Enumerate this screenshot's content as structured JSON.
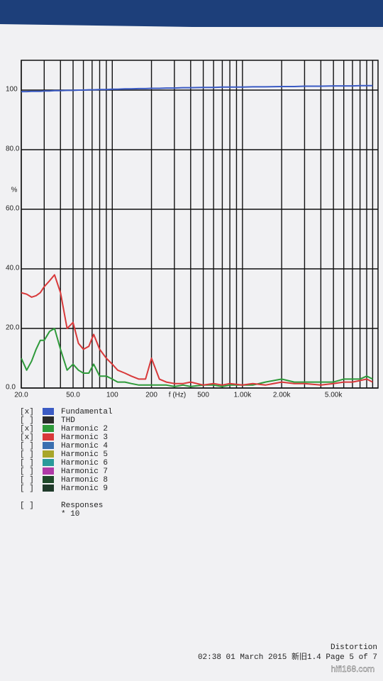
{
  "chart_data": {
    "type": "line",
    "y_label": "%",
    "x_label": "f (Hz)",
    "log_x": true,
    "grid": true,
    "x": [
      20,
      22,
      24,
      26,
      28,
      30,
      33,
      36,
      40,
      45,
      50,
      55,
      60,
      66,
      72,
      80,
      90,
      100,
      110,
      125,
      140,
      160,
      180,
      200,
      230,
      260,
      300,
      350,
      400,
      500,
      600,
      700,
      800,
      1000,
      1200,
      1500,
      2000,
      2500,
      3000,
      4000,
      5000,
      6000,
      7000,
      8000,
      9000,
      10000
    ],
    "series": [
      {
        "name": "Fundamental",
        "mark": "[x]",
        "color": "#3b5bc4",
        "values": [
          99.5,
          99.5,
          99.6,
          99.6,
          99.6,
          99.7,
          99.7,
          99.8,
          99.8,
          99.9,
          99.9,
          100,
          100,
          100.1,
          100.1,
          100.2,
          100.2,
          100.3,
          100.3,
          100.4,
          100.4,
          100.5,
          100.5,
          100.6,
          100.6,
          100.7,
          100.7,
          100.8,
          100.8,
          100.9,
          100.9,
          101,
          101,
          101,
          101.1,
          101.1,
          101.2,
          101.2,
          101.3,
          101.3,
          101.4,
          101.4,
          101.4,
          101.5,
          101.5,
          101.5
        ]
      },
      {
        "name": "THD",
        "mark": "[ ]",
        "color": "#2a2a2a"
      },
      {
        "name": "Harmonic 2",
        "mark": "[x]",
        "color": "#2e9a3a",
        "values": [
          10,
          6,
          9,
          13,
          16,
          16,
          19,
          20,
          13,
          6,
          8,
          6,
          5,
          5,
          8,
          4,
          4,
          3,
          2,
          2,
          1.5,
          1,
          1,
          1,
          1,
          1,
          0.5,
          1,
          0.5,
          1,
          1,
          0.5,
          1,
          1,
          1,
          2,
          3,
          2,
          2,
          2,
          2,
          3,
          3,
          3,
          4,
          3
        ]
      },
      {
        "name": "Harmonic 3",
        "mark": "[x]",
        "color": "#d8393a",
        "values": [
          32,
          31.5,
          30.5,
          31,
          32,
          34,
          36,
          38,
          32,
          20,
          22,
          15,
          13,
          14,
          18,
          13,
          10,
          8,
          6,
          5,
          4,
          3,
          3,
          10,
          3,
          2,
          1.5,
          1.5,
          2,
          1,
          1.5,
          1,
          1.5,
          1,
          1.5,
          1,
          2,
          1.5,
          1.5,
          1,
          1.5,
          2,
          2,
          2.5,
          3,
          2
        ]
      },
      {
        "name": "Harmonic 4",
        "mark": "[ ]",
        "color": "#3a6fb0"
      },
      {
        "name": "Harmonic 5",
        "mark": "[ ]",
        "color": "#a8a62a"
      },
      {
        "name": "Harmonic 6",
        "mark": "[ ]",
        "color": "#2a9a9a"
      },
      {
        "name": "Harmonic 7",
        "mark": "[ ]",
        "color": "#b03aa8"
      },
      {
        "name": "Harmonic 8",
        "mark": "[ ]",
        "color": "#1f4a2a"
      },
      {
        "name": "Harmonic 9",
        "mark": "[ ]",
        "color": "#1f3a2a"
      }
    ],
    "xlim": [
      20,
      11000
    ],
    "xticks": [
      {
        "value": 20,
        "label": "20.0"
      },
      {
        "value": 50,
        "label": "50.0"
      },
      100,
      200,
      500,
      {
        "value": 1000,
        "label": "1.00k"
      },
      {
        "value": 2000,
        "label": "2.00k"
      },
      {
        "value": 5000,
        "label": "5.00k"
      }
    ],
    "xgrid": [
      20,
      30,
      40,
      50,
      60,
      70,
      80,
      90,
      100,
      200,
      300,
      400,
      500,
      600,
      700,
      800,
      900,
      1000,
      2000,
      3000,
      4000,
      5000,
      6000,
      7000,
      8000,
      9000,
      10000
    ],
    "ylim": [
      0,
      110
    ],
    "yticks": [
      {
        "value": 0,
        "label": "0.0"
      },
      {
        "value": 20,
        "label": "20.0"
      },
      {
        "value": 40,
        "label": "40.0"
      },
      {
        "value": 60,
        "label": "60.0"
      },
      {
        "value": 80,
        "label": "80.0"
      },
      100
    ],
    "responses": {
      "mark": "[ ]",
      "title": "Responses",
      "value": "* 10"
    }
  },
  "footer": {
    "title": "Distortion",
    "line": "02:38 01 March 2015 新旧1.4 Page 5 of 7"
  },
  "watermark": "hifi168.com"
}
